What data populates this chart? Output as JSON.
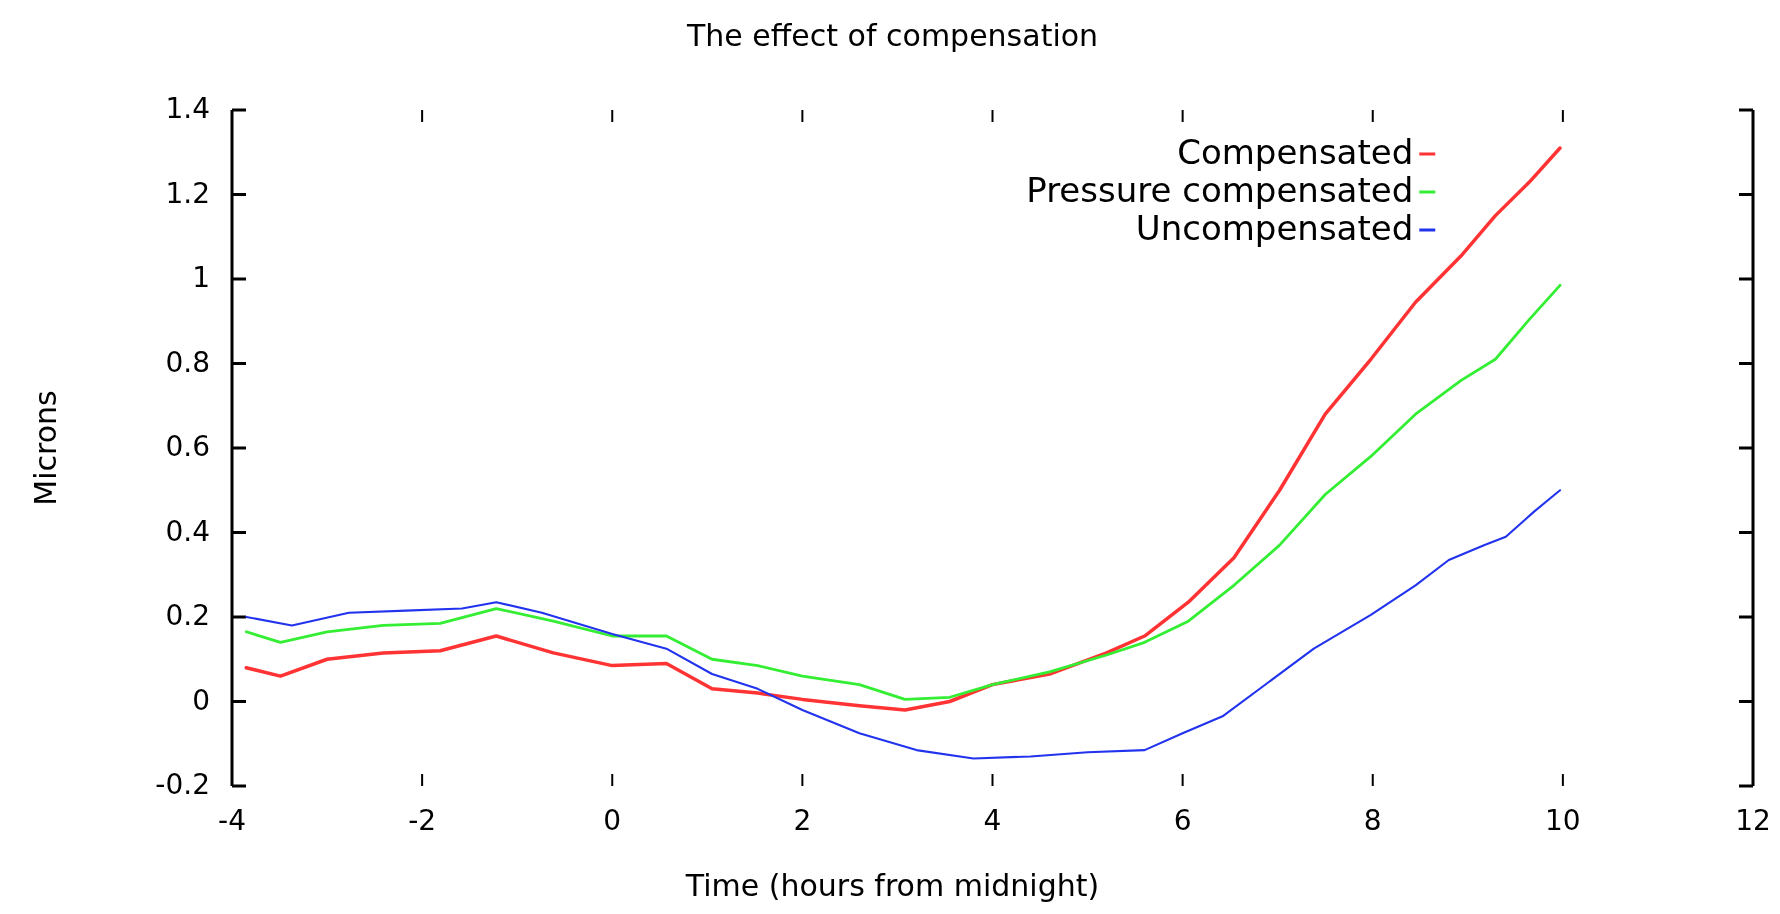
{
  "chart_data": {
    "type": "line",
    "title": "The effect of compensation",
    "xlabel": "Time (hours from midnight)",
    "ylabel": "Microns",
    "xlim": [
      -4,
      12
    ],
    "xticks": [
      -4,
      -2,
      0,
      2,
      4,
      6,
      8,
      10,
      12
    ],
    "ylim": [
      -0.2,
      1.4
    ],
    "yticks": [
      -0.2,
      0,
      0.2,
      0.4,
      0.6,
      0.8,
      1,
      1.2,
      1.4
    ],
    "legend": "top right",
    "grid": false,
    "marker": "none",
    "line_style": "solid",
    "series": [
      {
        "name": "Compensated",
        "color": "#ff3333",
        "x": [
          -3.85,
          -3.49,
          -3.0,
          -2.41,
          -1.81,
          -1.22,
          -0.62,
          0,
          0.57,
          1.05,
          1.53,
          2,
          2.6,
          3.08,
          3.55,
          4.0,
          4.6,
          5.2,
          5.6,
          6.06,
          6.54,
          7.02,
          7.5,
          7.98,
          8.45,
          8.93,
          9.29,
          9.65,
          9.97
        ],
        "values": [
          0.08,
          0.06,
          0.1,
          0.115,
          0.12,
          0.155,
          0.115,
          0.085,
          0.09,
          0.03,
          0.02,
          0.005,
          -0.01,
          -0.02,
          0,
          0.04,
          0.065,
          0.115,
          0.155,
          0.235,
          0.34,
          0.5,
          0.68,
          0.81,
          0.945,
          1.055,
          1.15,
          1.23,
          1.31
        ]
      },
      {
        "name": "Pressure compensated",
        "color": "#33ee33",
        "x": [
          -3.85,
          -3.49,
          -3.0,
          -2.41,
          -1.81,
          -1.22,
          -0.62,
          0,
          0.57,
          1.05,
          1.53,
          2,
          2.6,
          3.08,
          3.55,
          4.0,
          4.6,
          5.2,
          5.6,
          6.06,
          6.54,
          7.02,
          7.5,
          7.98,
          8.45,
          8.93,
          9.29,
          9.65,
          9.97
        ],
        "values": [
          0.165,
          0.14,
          0.165,
          0.18,
          0.185,
          0.22,
          0.19,
          0.155,
          0.155,
          0.1,
          0.085,
          0.06,
          0.04,
          0.005,
          0.01,
          0.04,
          0.07,
          0.11,
          0.14,
          0.19,
          0.275,
          0.37,
          0.49,
          0.58,
          0.68,
          0.76,
          0.81,
          0.905,
          0.985
        ]
      },
      {
        "name": "Uncompensated",
        "color": "#2233ee",
        "x": [
          -3.85,
          -3.37,
          -2.77,
          -2.17,
          -1.58,
          -1.22,
          -0.74,
          0,
          0.57,
          1.05,
          1.53,
          2,
          2.6,
          3.2,
          3.8,
          4.4,
          5.0,
          5.6,
          6,
          6.42,
          6.9,
          7.38,
          7.98,
          8.45,
          8.8,
          9.17,
          9.4,
          9.7,
          9.97
        ],
        "values": [
          0.2,
          0.18,
          0.21,
          0.215,
          0.22,
          0.235,
          0.21,
          0.16,
          0.125,
          0.065,
          0.03,
          -0.02,
          -0.075,
          -0.115,
          -0.135,
          -0.13,
          -0.12,
          -0.115,
          -0.075,
          -0.035,
          0.045,
          0.125,
          0.205,
          0.275,
          0.335,
          0.37,
          0.39,
          0.45,
          0.5
        ]
      }
    ]
  }
}
